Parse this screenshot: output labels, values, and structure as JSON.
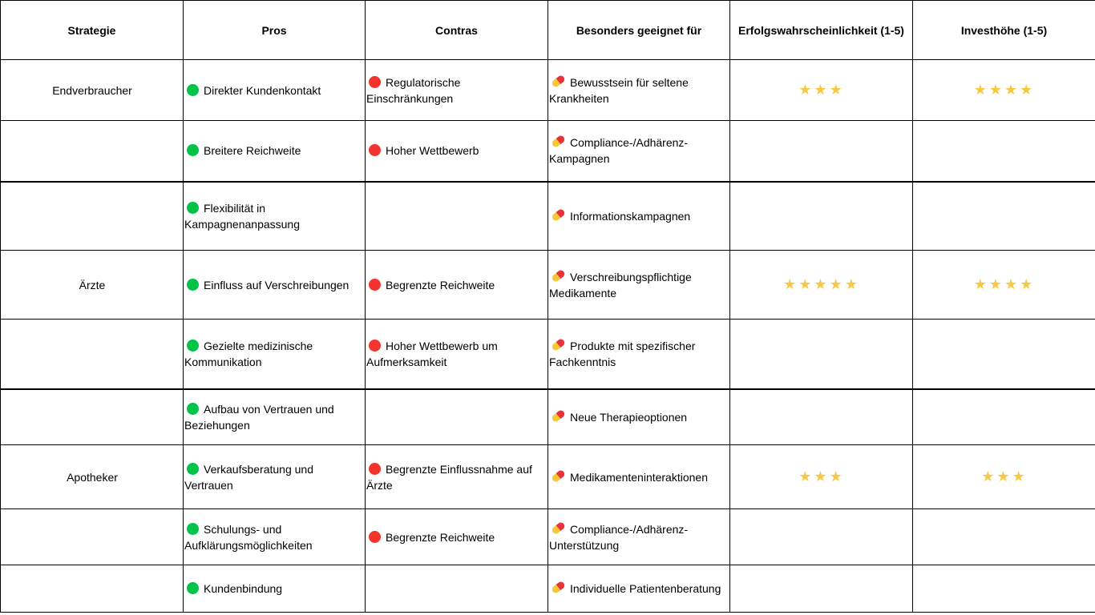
{
  "headers": [
    "Strategie",
    "Pros",
    "Contras",
    "Besonders geeignet für",
    "Erfolgswahrscheinlichkeit (1-5)",
    "Investhöhe (1-5)"
  ],
  "colors": {
    "pro_dot": "#00c34a",
    "con_dot": "#f2342d",
    "star": "#f7c843"
  },
  "icons": {
    "pro": "green-circle-icon",
    "con": "red-circle-icon",
    "suited": "pill-icon",
    "rating": "star-icon"
  },
  "rows": [
    {
      "strategy": "Endverbraucher",
      "pro": "Direkter Kundenkontakt",
      "con": "Regulatorische Einschränkungen",
      "suited": "Bewusstsein für seltene Krankheiten",
      "success": 3,
      "invest": 4
    },
    {
      "strategy": "",
      "pro": "Breitere Reichweite",
      "con": "Hoher Wettbewerb",
      "suited": "Compliance-/Adhärenz-Kampagnen",
      "success": null,
      "invest": null
    },
    {
      "strategy": "",
      "pro": "Flexibilität in Kampagnenanpassung",
      "con": "",
      "suited": "Informationskampagnen",
      "success": null,
      "invest": null
    },
    {
      "strategy": "Ärzte",
      "pro": "Einfluss auf Verschreibungen",
      "con": "Begrenzte Reichweite",
      "suited": "Verschreibungspflichtige Medikamente",
      "success": 5,
      "invest": 4
    },
    {
      "strategy": "",
      "pro": "Gezielte medizinische Kommunikation",
      "con": "Hoher Wettbewerb um Aufmerksamkeit",
      "suited": "Produkte mit spezifischer Fachkenntnis",
      "success": null,
      "invest": null
    },
    {
      "strategy": "",
      "pro": "Aufbau von Vertrauen und Beziehungen",
      "con": "",
      "suited": "Neue Therapieoptionen",
      "success": null,
      "invest": null
    },
    {
      "strategy": "Apotheker",
      "pro": "Verkaufsberatung und Vertrauen",
      "con": "Begrenzte Einflussnahme auf Ärzte",
      "suited": "Medikamenteninteraktionen",
      "success": 3,
      "invest": 3
    },
    {
      "strategy": "",
      "pro": "Schulungs- und Aufklärungsmöglichkeiten",
      "con": "Begrenzte Reichweite",
      "suited": "Compliance-/Adhärenz-Unterstützung",
      "success": null,
      "invest": null
    },
    {
      "strategy": "",
      "pro": "Kundenbindung",
      "con": "",
      "suited": "Individuelle Patientenberatung",
      "success": null,
      "invest": null
    }
  ]
}
